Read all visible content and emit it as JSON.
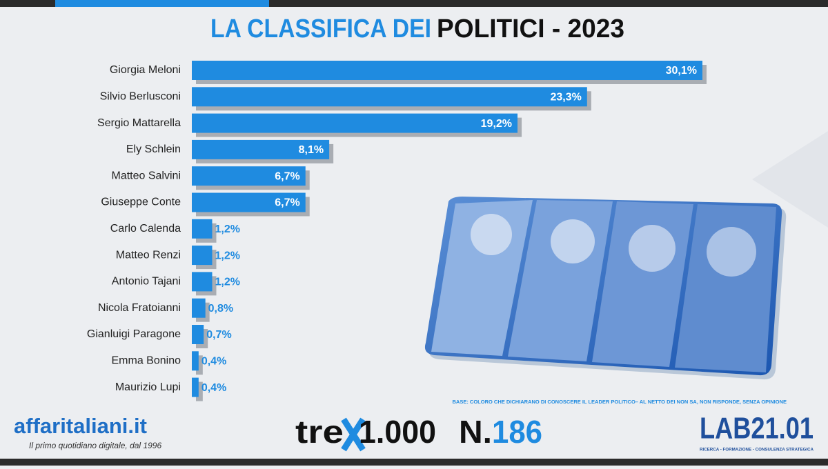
{
  "chart_data": {
    "type": "bar",
    "orientation": "horizontal",
    "title": [
      "LA CLASSIFICA DEI",
      "POLITICI - 2023"
    ],
    "categories": [
      "Giorgia Meloni",
      "Silvio Berlusconi",
      "Sergio Mattarella",
      "Ely Schlein",
      "Matteo Salvini",
      "Giuseppe Conte",
      "Carlo Calenda",
      "Matteo Renzi",
      "Antonio Tajani",
      "Nicola Fratoianni",
      "Gianluigi Paragone",
      "Emma Bonino",
      "Maurizio Lupi"
    ],
    "values": [
      30.1,
      23.3,
      19.2,
      8.1,
      6.7,
      6.7,
      1.2,
      1.2,
      1.2,
      0.8,
      0.7,
      0.4,
      0.4
    ],
    "value_labels": [
      "30,1%",
      "23,3%",
      "19,2%",
      "8,1%",
      "6,7%",
      "6,7%",
      "1,2%",
      "1,2%",
      "1,2%",
      "0,8%",
      "0,7%",
      "0,4%",
      "0,4%"
    ],
    "color": "#1f8be0",
    "note": "BASE: COLORO CHE DICHIARANO DI CONOSCERE IL LEADER POLITICO– AL NETTO DEI NON SA, NON RISPONDE, SENZA OPINIONE"
  },
  "footer": {
    "brand": "affaritaliani.it",
    "tagline": "Il primo quotidiano digitale, dal 1996",
    "series_name": [
      "tre",
      "1.000"
    ],
    "issue": [
      "N.",
      "186"
    ],
    "lab": "LAB21.01",
    "lab_tagline": "RICERCA - FORMAZIONE - CONSULENZA STRATEGICA"
  }
}
